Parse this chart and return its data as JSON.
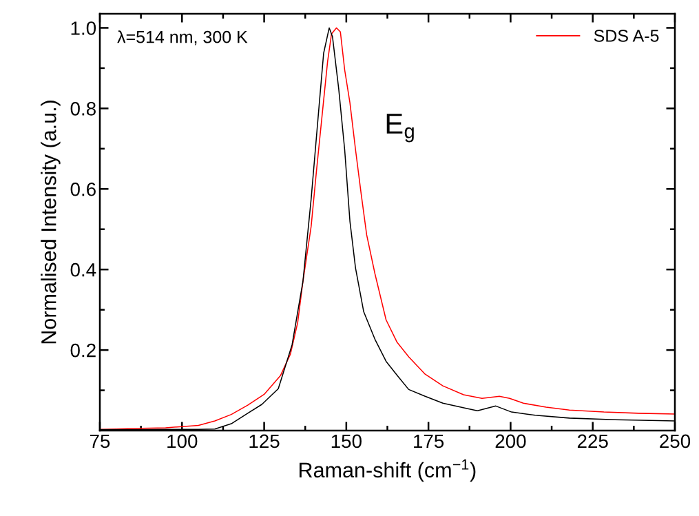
{
  "chart_data": {
    "type": "line",
    "xlabel": "Raman-shift (cm$^{−1}$)",
    "ylabel": "Normalised Intensity (a.u.)",
    "annotations": [
      "λ=514 nm, 300 K",
      "E$_{g}$"
    ],
    "xlim": [
      75,
      250
    ],
    "xticks": [
      75,
      100,
      125,
      150,
      175,
      200,
      225,
      250
    ],
    "ylim": [
      0,
      1.035
    ],
    "yticks": [
      0.2,
      0.4,
      0.6,
      0.8,
      {
        "value": 1,
        "label": "1.0"
      }
    ],
    "legend": "top right",
    "grid": false,
    "marker": "none",
    "line_style": "solid",
    "series": [
      {
        "name": "SDS A-5",
        "color": "#ff0000",
        "x": [
          75,
          80,
          85,
          90,
          95,
          100,
          105,
          110,
          115,
          120,
          125,
          130,
          133,
          135.2,
          136.8,
          139.3,
          140.9,
          142.6,
          144.3,
          145.5,
          147,
          148.2,
          149.5,
          151.1,
          152.8,
          154.5,
          156.2,
          158.7,
          162.1,
          165.4,
          169,
          174,
          179.4,
          185.7,
          191.3,
          196.6,
          199.7,
          203.9,
          210.8,
          217.9,
          228.4,
          238.9,
          250
        ],
        "values": [
          0.003,
          0.004,
          0.005,
          0.006,
          0.007,
          0.01,
          0.013,
          0.024,
          0.04,
          0.063,
          0.09,
          0.137,
          0.19,
          0.268,
          0.37,
          0.507,
          0.643,
          0.78,
          0.916,
          0.985,
          1.0,
          0.99,
          0.896,
          0.814,
          0.698,
          0.589,
          0.486,
          0.39,
          0.275,
          0.22,
          0.183,
          0.14,
          0.111,
          0.089,
          0.08,
          0.085,
          0.08,
          0.068,
          0.058,
          0.051,
          0.046,
          0.043,
          0.041
        ]
      },
      {
        "color": "#000000",
        "x": [
          75,
          85,
          95,
          105,
          110,
          115,
          120,
          124.3,
          129.3,
          133.5,
          136.8,
          139.3,
          141.8,
          143.1,
          144.8,
          145.8,
          147.7,
          149.5,
          151.1,
          152.8,
          155.3,
          158.7,
          162.1,
          165.5,
          169,
          174,
          179.4,
          186.5,
          189.9,
          195.5,
          200.3,
          207.5,
          217.9,
          231.8,
          250
        ],
        "values": [
          0.002,
          0.002,
          0.003,
          0.003,
          0.004,
          0.017,
          0.043,
          0.065,
          0.104,
          0.213,
          0.37,
          0.575,
          0.814,
          0.937,
          1.0,
          0.978,
          0.848,
          0.698,
          0.52,
          0.404,
          0.295,
          0.227,
          0.172,
          0.137,
          0.102,
          0.085,
          0.068,
          0.055,
          0.049,
          0.061,
          0.046,
          0.038,
          0.031,
          0.027,
          0.024
        ]
      }
    ]
  }
}
